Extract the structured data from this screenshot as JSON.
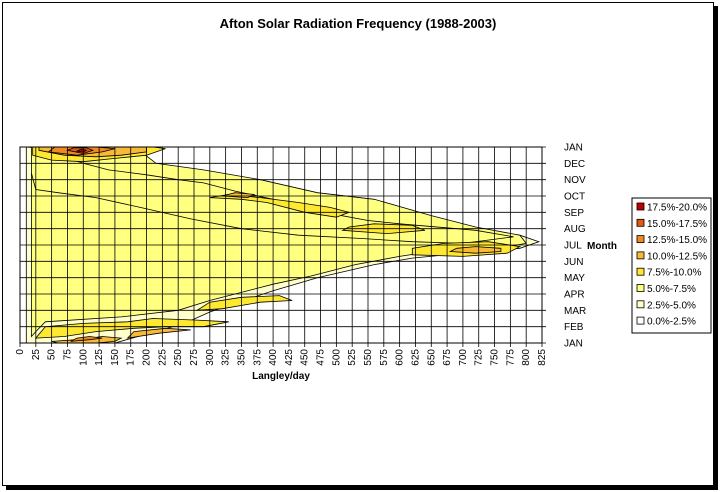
{
  "chart_data": {
    "type": "contour",
    "title": "Afton Solar Radiation Frequency (1988-2003)",
    "xlabel": "Langley/day",
    "ylabel": "Month",
    "xlim": [
      0,
      825
    ],
    "x_ticks": [
      "0",
      "25",
      "50",
      "75",
      "100",
      "125",
      "150",
      "175",
      "200",
      "225",
      "250",
      "275",
      "300",
      "325",
      "350",
      "375",
      "400",
      "425",
      "450",
      "475",
      "500",
      "525",
      "550",
      "575",
      "600",
      "625",
      "650",
      "675",
      "700",
      "725",
      "750",
      "775",
      "800",
      "825"
    ],
    "y_ticks": [
      "JAN",
      "FEB",
      "MAR",
      "APR",
      "MAY",
      "JUN",
      "JUL",
      "AUG",
      "SEP",
      "OCT",
      "NOV",
      "DEC",
      "JAN"
    ],
    "grid": true,
    "legend_position": "right",
    "legend": [
      {
        "label": "17.5%-20.0%",
        "color": "#c00000"
      },
      {
        "label": "15.0%-17.5%",
        "color": "#e05a10"
      },
      {
        "label": "12.5%-15.0%",
        "color": "#f08a20"
      },
      {
        "label": "10.0%-12.5%",
        "color": "#f8b838"
      },
      {
        "label": "7.5%-10.0%",
        "color": "#ffe830"
      },
      {
        "label": "5.0%-7.5%",
        "color": "#ffff80"
      },
      {
        "label": "2.5%-5.0%",
        "color": "#ffffcc"
      },
      {
        "label": "0.0%-2.5%",
        "color": "#ffffff"
      }
    ],
    "regions": [
      {
        "level": 1,
        "points": [
          [
            10,
            1.2
          ],
          [
            10,
            0
          ],
          [
            150,
            0
          ],
          [
            260,
            1.2
          ],
          [
            300,
            1.9
          ],
          [
            400,
            3.2
          ],
          [
            470,
            4.0
          ],
          [
            560,
            4.8
          ],
          [
            620,
            5.2
          ],
          [
            700,
            5.5
          ],
          [
            790,
            5.8
          ],
          [
            820,
            6.2
          ],
          [
            790,
            6.6
          ],
          [
            680,
            7.2
          ],
          [
            560,
            8.5
          ],
          [
            430,
            9.2
          ],
          [
            340,
            9.6
          ],
          [
            260,
            10.6
          ],
          [
            170,
            11.4
          ],
          [
            10,
            12.0
          ]
        ]
      },
      {
        "level": 2,
        "points": [
          [
            18,
            12.0
          ],
          [
            150,
            12.0
          ],
          [
            195,
            11.6
          ],
          [
            215,
            11.0
          ],
          [
            290,
            10.6
          ],
          [
            380,
            10.0
          ],
          [
            470,
            9.2
          ],
          [
            560,
            8.8
          ],
          [
            650,
            7.8
          ],
          [
            720,
            7.1
          ],
          [
            790,
            6.6
          ],
          [
            800,
            6.1
          ],
          [
            740,
            5.7
          ],
          [
            650,
            5.6
          ],
          [
            600,
            5.3
          ],
          [
            530,
            4.8
          ],
          [
            460,
            4.1
          ],
          [
            400,
            3.6
          ],
          [
            300,
            2.6
          ],
          [
            250,
            2.0
          ],
          [
            160,
            1.6
          ],
          [
            40,
            1.3
          ],
          [
            25,
            0.7
          ],
          [
            18,
            0.4
          ]
        ]
      },
      {
        "level": 2,
        "points": [
          [
            18,
            12.9
          ],
          [
            25,
            12.3
          ],
          [
            60,
            11.5
          ],
          [
            100,
            11.0
          ],
          [
            140,
            10.6
          ],
          [
            200,
            10.3
          ],
          [
            250,
            10.0
          ],
          [
            290,
            9.8
          ],
          [
            340,
            9.3
          ],
          [
            400,
            8.8
          ],
          [
            480,
            8.0
          ],
          [
            550,
            7.5
          ],
          [
            600,
            7.3
          ],
          [
            720,
            6.9
          ],
          [
            780,
            6.5
          ],
          [
            700,
            6.1
          ],
          [
            620,
            6.2
          ],
          [
            540,
            6.4
          ],
          [
            440,
            6.6
          ],
          [
            350,
            7.0
          ],
          [
            270,
            7.6
          ],
          [
            190,
            8.3
          ],
          [
            120,
            8.9
          ],
          [
            60,
            9.2
          ],
          [
            25,
            9.4
          ],
          [
            18,
            10.4
          ]
        ]
      },
      {
        "level": 3,
        "points": [
          [
            25,
            0.3
          ],
          [
            70,
            0.4
          ],
          [
            120,
            0.7
          ],
          [
            180,
            0.9
          ],
          [
            230,
            1.0
          ],
          [
            290,
            1.0
          ],
          [
            330,
            1.3
          ],
          [
            280,
            1.4
          ],
          [
            210,
            1.5
          ],
          [
            170,
            1.3
          ],
          [
            100,
            1.2
          ],
          [
            40,
            1.0
          ]
        ]
      },
      {
        "level": 3,
        "points": [
          [
            280,
            2.0
          ],
          [
            320,
            2.1
          ],
          [
            380,
            2.5
          ],
          [
            430,
            2.6
          ],
          [
            410,
            2.9
          ],
          [
            350,
            2.8
          ],
          [
            300,
            2.5
          ]
        ]
      },
      {
        "level": 3,
        "points": [
          [
            620,
            5.4
          ],
          [
            700,
            5.3
          ],
          [
            770,
            5.5
          ],
          [
            790,
            5.9
          ],
          [
            740,
            6.2
          ],
          [
            670,
            6.1
          ],
          [
            620,
            5.8
          ]
        ]
      },
      {
        "level": 3,
        "points": [
          [
            510,
            6.9
          ],
          [
            580,
            6.7
          ],
          [
            640,
            6.9
          ],
          [
            620,
            7.2
          ],
          [
            560,
            7.3
          ],
          [
            520,
            7.1
          ]
        ]
      },
      {
        "level": 3,
        "points": [
          [
            300,
            8.9
          ],
          [
            350,
            8.8
          ],
          [
            390,
            8.6
          ],
          [
            450,
            8.0
          ],
          [
            500,
            7.7
          ],
          [
            520,
            8.0
          ],
          [
            490,
            8.3
          ],
          [
            440,
            8.6
          ],
          [
            380,
            8.9
          ],
          [
            330,
            9.1
          ]
        ]
      },
      {
        "level": 3,
        "points": [
          [
            20,
            11.5
          ],
          [
            50,
            11.2
          ],
          [
            100,
            11.1
          ],
          [
            150,
            11.3
          ],
          [
            200,
            11.5
          ],
          [
            230,
            11.9
          ],
          [
            210,
            12.0
          ],
          [
            20,
            12.0
          ]
        ]
      },
      {
        "level": 4,
        "points": [
          [
            50,
            0.1
          ],
          [
            90,
            0.2
          ],
          [
            130,
            0.4
          ],
          [
            160,
            0.3
          ],
          [
            150,
            0.1
          ],
          [
            120,
            0.0
          ],
          [
            60,
            0.0
          ]
        ]
      },
      {
        "level": 4,
        "points": [
          [
            170,
            0.3
          ],
          [
            220,
            0.6
          ],
          [
            270,
            0.8
          ],
          [
            230,
            0.9
          ],
          [
            180,
            0.7
          ]
        ]
      },
      {
        "level": 4,
        "points": [
          [
            680,
            5.6
          ],
          [
            720,
            5.5
          ],
          [
            760,
            5.6
          ],
          [
            760,
            5.8
          ],
          [
            720,
            5.9
          ],
          [
            690,
            5.8
          ]
        ]
      },
      {
        "level": 4,
        "points": [
          [
            320,
            9.0
          ],
          [
            360,
            8.9
          ],
          [
            370,
            9.1
          ],
          [
            340,
            9.2
          ]
        ]
      },
      {
        "level": 4,
        "points": [
          [
            30,
            11.8
          ],
          [
            70,
            11.5
          ],
          [
            120,
            11.4
          ],
          [
            160,
            11.5
          ],
          [
            200,
            11.7
          ],
          [
            200,
            12.0
          ],
          [
            30,
            12.0
          ]
        ]
      },
      {
        "level": 5,
        "points": [
          [
            80,
            0.1
          ],
          [
            110,
            0.2
          ],
          [
            130,
            0.3
          ],
          [
            110,
            0.4
          ],
          [
            90,
            0.3
          ]
        ]
      },
      {
        "level": 5,
        "points": [
          [
            45,
            11.7
          ],
          [
            90,
            11.5
          ],
          [
            130,
            11.7
          ],
          [
            150,
            11.9
          ],
          [
            120,
            12.0
          ],
          [
            55,
            12.0
          ]
        ]
      },
      {
        "level": 6,
        "points": [
          [
            75,
            11.8
          ],
          [
            100,
            11.6
          ],
          [
            115,
            11.8
          ],
          [
            105,
            11.95
          ],
          [
            85,
            11.95
          ]
        ]
      },
      {
        "level": 7,
        "points": [
          [
            90,
            11.75
          ],
          [
            100,
            11.68
          ],
          [
            105,
            11.8
          ],
          [
            97,
            11.88
          ]
        ]
      }
    ]
  }
}
